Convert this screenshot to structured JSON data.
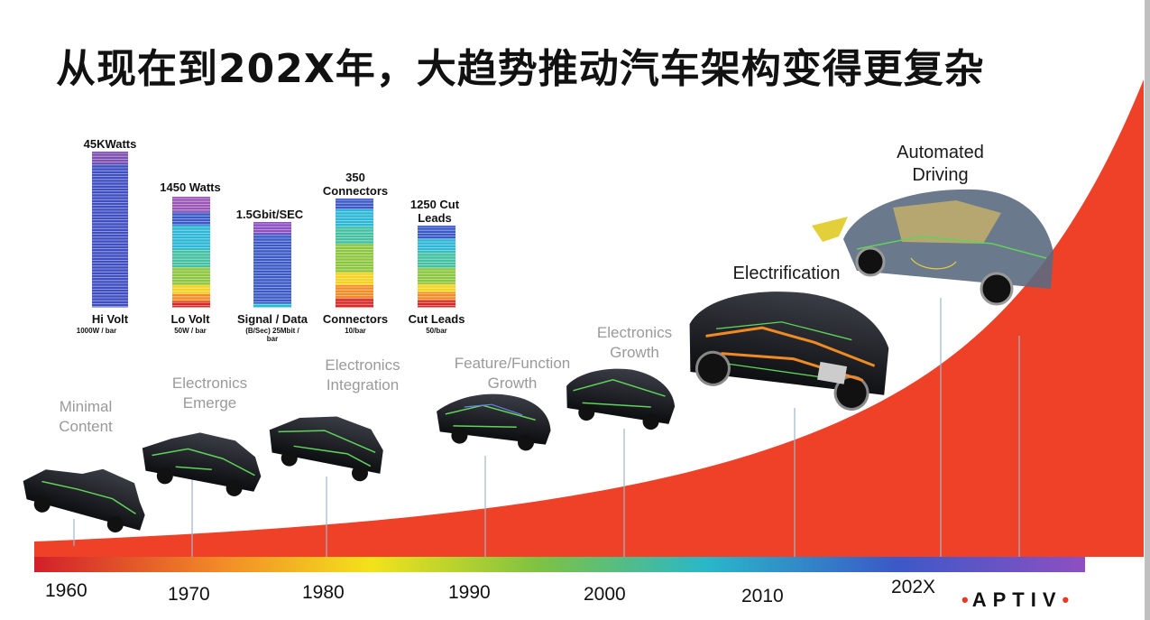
{
  "title": "从现在到202X年，大趋势推动汽车架构变得更复杂",
  "bars": [
    {
      "top_label": "45KWatts",
      "name": "Hi Volt",
      "sub": "1000W / bar"
    },
    {
      "top_label": "1450 Watts",
      "name": "Lo Volt",
      "sub": "50W / bar"
    },
    {
      "top_label": "1.5Gbit/SEC",
      "name": "Signal / Data",
      "sub": "(B/Sec) 25Mbit / bar"
    },
    {
      "top_label": "350 Connectors",
      "name": "Connectors",
      "sub": "10/bar"
    },
    {
      "top_label": "1250 Cut Leads",
      "name": "Cut Leads",
      "sub": "50/bar"
    }
  ],
  "eras": [
    "Minimal Content",
    "Electronics Emerge",
    "Electronics Integration",
    "Feature/Function Growth",
    "Electronics Growth",
    "Electrification",
    "Automated Driving"
  ],
  "years": [
    "1960",
    "1970",
    "1980",
    "1990",
    "2000",
    "2010",
    "202X"
  ],
  "logo": {
    "text": "APTIV",
    "dot": "•"
  },
  "colors": {
    "curve": "#ef4128",
    "spectrum": [
      "#d21f2a",
      "#f28c28",
      "#f3e21b",
      "#7ec242",
      "#29b7c9",
      "#3b59c7",
      "#8e4fc2"
    ]
  }
}
